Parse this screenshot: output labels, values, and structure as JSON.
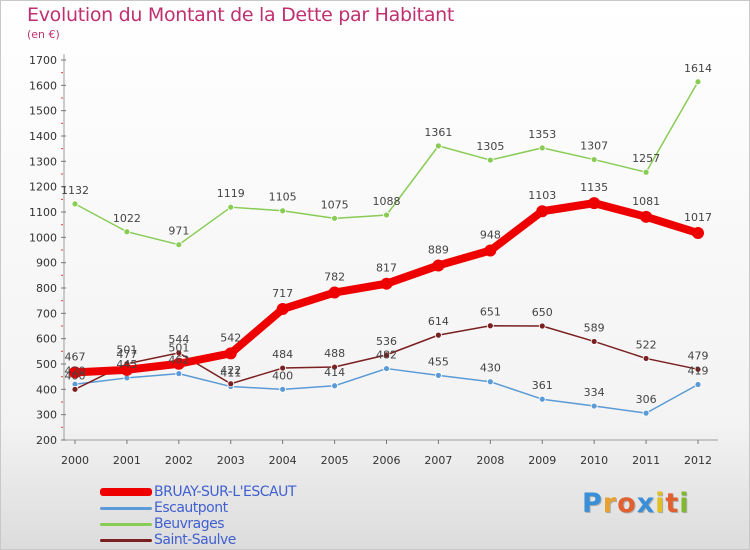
{
  "header": {
    "title": "Evolution du Montant de la Dette par Habitant",
    "subtitle": "(en €)"
  },
  "logo": {
    "letters": [
      "P",
      "r",
      "o",
      "x",
      "i",
      "t",
      "i"
    ],
    "colors": [
      "#3a8fd8",
      "#e8a030",
      "#e06030",
      "#3a8fd8",
      "#e0c020",
      "#e06030",
      "#80b830"
    ]
  },
  "chart_data": {
    "type": "line",
    "title": "Evolution du Montant de la Dette par Habitant",
    "subtitle": "(en €)",
    "x": [
      "2000",
      "2001",
      "2002",
      "2003",
      "2004",
      "2005",
      "2006",
      "2007",
      "2008",
      "2009",
      "2010",
      "2011",
      "2012"
    ],
    "ylim": [
      200,
      1700
    ],
    "yticks": [
      200,
      300,
      400,
      500,
      600,
      700,
      800,
      900,
      1000,
      1100,
      1200,
      1300,
      1400,
      1500,
      1600,
      1700
    ],
    "grid": false,
    "legend_position": "bottom-left",
    "series": [
      {
        "name": "BRUAY-SUR-L'ESCAUT",
        "color": "#ee0000",
        "values": [
          467,
          477,
          501,
          542,
          717,
          782,
          817,
          889,
          948,
          1103,
          1135,
          1081,
          1017
        ],
        "labels": [
          "467",
          "477",
          "501",
          "542",
          "717",
          "782",
          "817",
          "889",
          "948",
          "1103",
          "1135",
          "1081",
          "1017"
        ]
      },
      {
        "name": "Escautpont",
        "color": "#5a9ad6",
        "values": [
          420,
          445,
          462,
          411,
          400,
          414,
          482,
          455,
          430,
          361,
          334,
          306,
          419
        ],
        "labels": [
          "420",
          "445",
          "462",
          "411",
          "400",
          "414",
          "482",
          "455",
          "430",
          "361",
          "334",
          "306",
          "419"
        ]
      },
      {
        "name": "Beuvrages",
        "color": "#88cc55",
        "values": [
          1132,
          1022,
          971,
          1119,
          1105,
          1075,
          1088,
          1361,
          1305,
          1353,
          1307,
          1257,
          1614
        ],
        "labels": [
          "1132",
          "1022",
          "971",
          "1119",
          "1105",
          "1075",
          "1088",
          "1361",
          "1305",
          "1353",
          "1307",
          "1257",
          "1614"
        ]
      },
      {
        "name": "Saint-Saulve",
        "color": "#7a2020",
        "values": [
          400,
          501,
          544,
          422,
          484,
          488,
          536,
          614,
          651,
          650,
          589,
          522,
          479
        ],
        "labels": [
          "400",
          "501",
          "544",
          "422",
          "484",
          "488",
          "536",
          "614",
          "651",
          "650",
          "589",
          "522",
          "479"
        ]
      }
    ]
  }
}
